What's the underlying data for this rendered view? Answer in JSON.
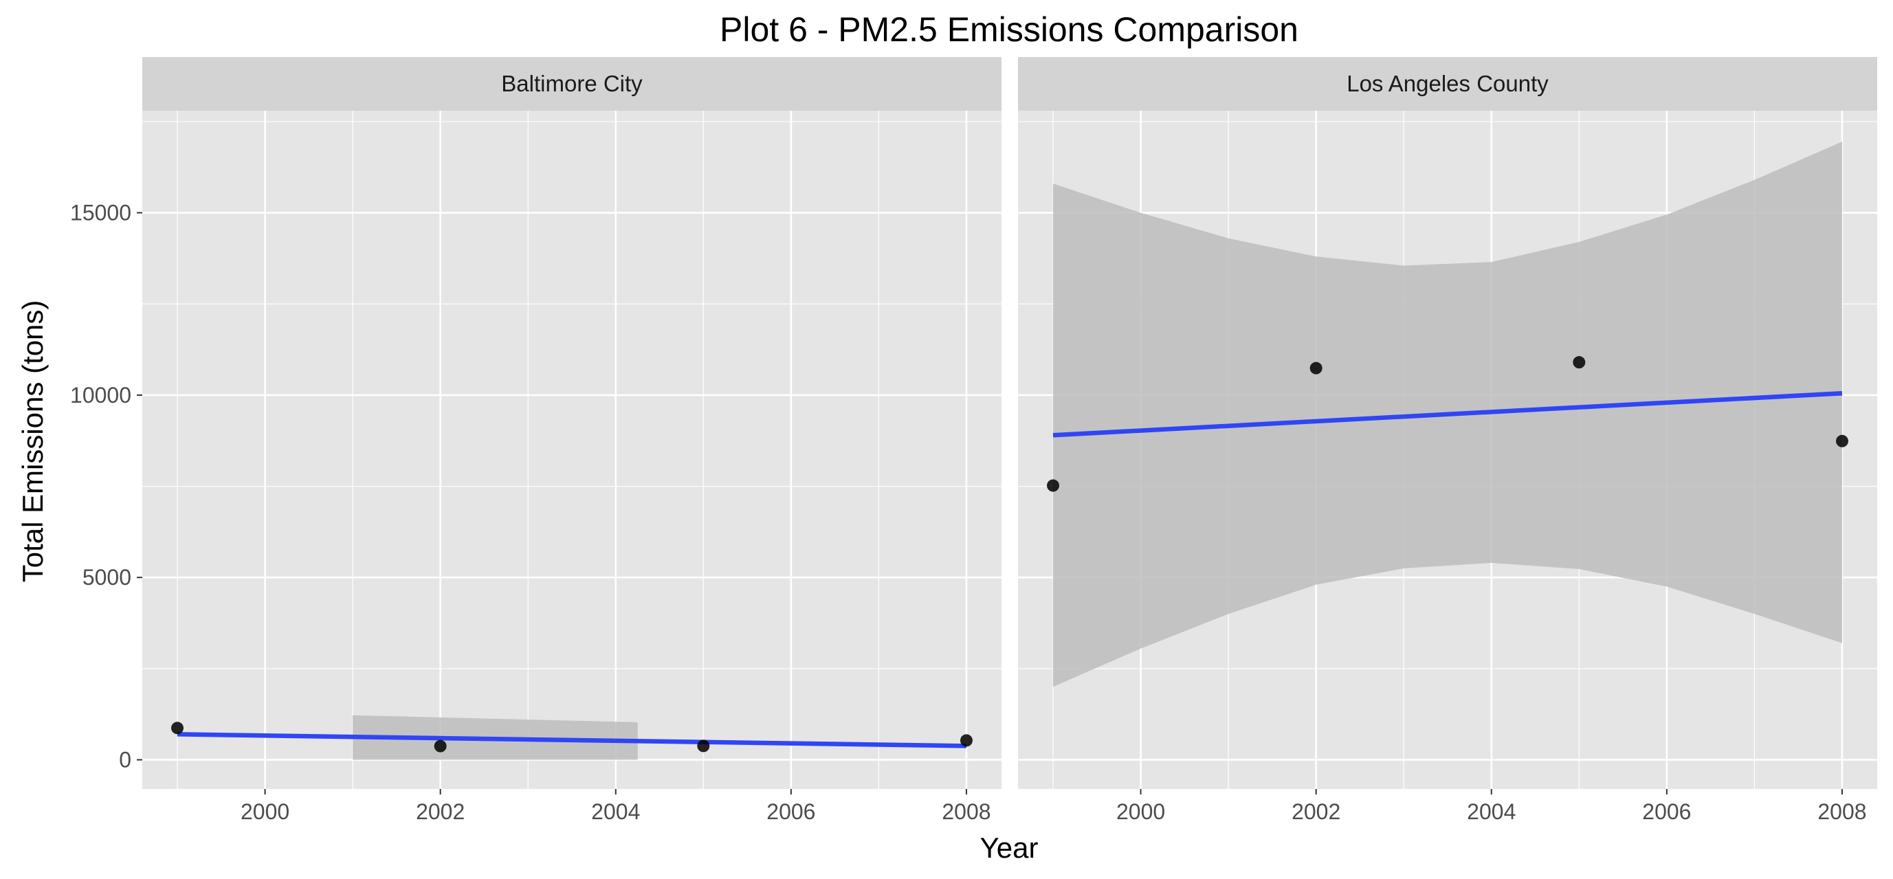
{
  "chart_data": {
    "type": "scatter",
    "title": "Plot 6 - PM2.5 Emissions Comparison",
    "xlabel": "Year",
    "ylabel": "Total Emissions (tons)",
    "xlim": [
      1998.6,
      2008.4
    ],
    "ylim": [
      -800,
      17800
    ],
    "x_ticks": [
      2000,
      2002,
      2004,
      2006,
      2008
    ],
    "y_ticks": [
      0,
      5000,
      10000,
      15000
    ],
    "grid": true,
    "legend": "none",
    "facets": [
      {
        "label": "Baltimore City",
        "points": [
          {
            "x": 1999,
            "y": 872
          },
          {
            "x": 2002,
            "y": 375
          },
          {
            "x": 2005,
            "y": 380
          },
          {
            "x": 2008,
            "y": 530
          }
        ],
        "trend": {
          "x": [
            1999,
            2008
          ],
          "y": [
            700,
            380
          ]
        },
        "confidence_band": {
          "x": [
            2001,
            2004.25
          ],
          "upper": [
            1220,
            1030
          ],
          "lower": [
            0,
            0
          ]
        }
      },
      {
        "label": "Los Angeles County",
        "points": [
          {
            "x": 1999,
            "y": 7520
          },
          {
            "x": 2002,
            "y": 10740
          },
          {
            "x": 2005,
            "y": 10900
          },
          {
            "x": 2008,
            "y": 8740
          }
        ],
        "trend": {
          "x": [
            1999,
            2008
          ],
          "y": [
            8900,
            10050
          ]
        },
        "confidence_band": {
          "x": [
            1999,
            2000,
            2001,
            2002,
            2003,
            2004,
            2005,
            2006,
            2007,
            2008
          ],
          "upper": [
            15800,
            15000,
            14300,
            13800,
            13550,
            13650,
            14200,
            14950,
            15900,
            16950
          ],
          "lower": [
            2000,
            3050,
            4000,
            4800,
            5250,
            5400,
            5230,
            4750,
            4000,
            3200
          ]
        }
      }
    ],
    "colors": {
      "panel_background": "#e5e5e5",
      "strip_background": "#d3d3d3",
      "gridline": "#ffffff",
      "point": "#000000",
      "trend_line": "#3045f5",
      "band": "#bdbdbd"
    }
  }
}
